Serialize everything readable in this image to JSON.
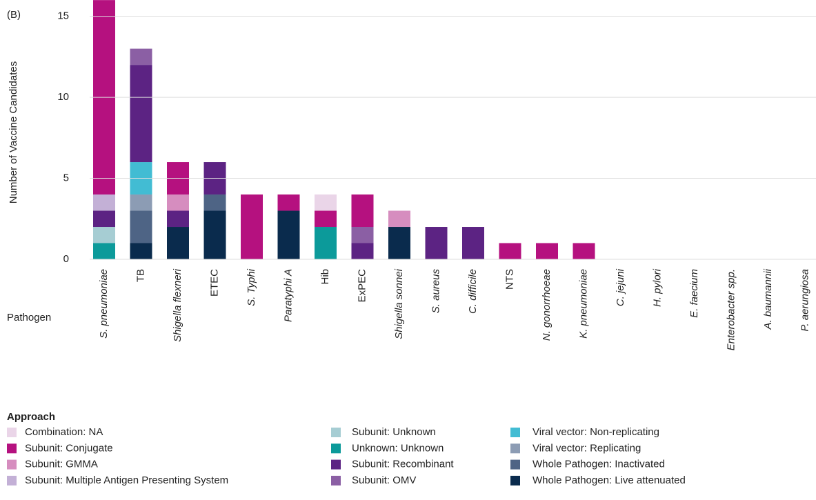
{
  "chart_data": {
    "type": "stacked_bar",
    "panel_label": "(B)",
    "y_label": "Number of Vaccine Candidates",
    "x_label": "Pathogen",
    "legend_title": "Approach",
    "ylim": [
      0,
      15.75
    ],
    "yticks": [
      0,
      5,
      10,
      15
    ],
    "grid": true,
    "categories": [
      "S. pneumoniae",
      "TB",
      "Shigella flexneri",
      "ETEC",
      "S. Typhi",
      "Paratyphi A",
      "Hib",
      "ExPEC",
      "Shigella sonnei",
      "S. aureus",
      "C. difficile",
      "NTS",
      "N. gonorrhoeae",
      "K. pneumoniae",
      "C. jejuni",
      "H. pylori",
      "E. faecium",
      "Enterobacter spp.",
      "A. baumannii",
      "P. aerungiosa"
    ],
    "series": [
      {
        "name": "Combination: NA",
        "color": "#ead5e8",
        "values": [
          0,
          0,
          0,
          0,
          0,
          0,
          1,
          0,
          0,
          0,
          0,
          0,
          0,
          0,
          0,
          0,
          0,
          0,
          0,
          0
        ]
      },
      {
        "name": "Subunit: Conjugate",
        "color": "#b5117f",
        "values": [
          12,
          0,
          2,
          0,
          4,
          1,
          1,
          2,
          0,
          0,
          0,
          1,
          1,
          1,
          0,
          0,
          0,
          0,
          0,
          0
        ]
      },
      {
        "name": "Subunit: GMMA",
        "color": "#d68dbf",
        "values": [
          0,
          0,
          1,
          0,
          0,
          0,
          0,
          0,
          1,
          0,
          0,
          0,
          0,
          0,
          0,
          0,
          0,
          0,
          0,
          0
        ]
      },
      {
        "name": "Subunit: Multiple Antigen Presenting System",
        "color": "#c3b0d6",
        "values": [
          1,
          0,
          0,
          0,
          0,
          0,
          0,
          0,
          0,
          0,
          0,
          0,
          0,
          0,
          0,
          0,
          0,
          0,
          0,
          0
        ]
      },
      {
        "name": "Subunit: Unknown",
        "color": "#a6cdd3",
        "values": [
          1,
          0,
          0,
          0,
          0,
          0,
          0,
          0,
          0,
          0,
          0,
          0,
          0,
          0,
          0,
          0,
          0,
          0,
          0,
          0
        ]
      },
      {
        "name": "Unknown: Unknown",
        "color": "#0c9a9a",
        "values": [
          1,
          0,
          0,
          0,
          0,
          0,
          2,
          0,
          0,
          0,
          0,
          0,
          0,
          0,
          0,
          0,
          0,
          0,
          0,
          0
        ]
      },
      {
        "name": "Subunit: Recombinant",
        "color": "#5c2383",
        "values": [
          1,
          6,
          1,
          2,
          0,
          0,
          0,
          1,
          0,
          2,
          2,
          0,
          0,
          0,
          0,
          0,
          0,
          0,
          0,
          0
        ]
      },
      {
        "name": "Subunit: OMV",
        "color": "#8b5fa4",
        "values": [
          0,
          1,
          0,
          0,
          0,
          0,
          0,
          1,
          0,
          0,
          0,
          0,
          0,
          0,
          0,
          0,
          0,
          0,
          0,
          0
        ]
      },
      {
        "name": "Viral vector: Non-replicating",
        "color": "#42bcd3",
        "values": [
          0,
          2,
          0,
          0,
          0,
          0,
          0,
          0,
          0,
          0,
          0,
          0,
          0,
          0,
          0,
          0,
          0,
          0,
          0,
          0
        ]
      },
      {
        "name": "Viral vector: Replicating",
        "color": "#8c9cb4",
        "values": [
          0,
          1,
          0,
          0,
          0,
          0,
          0,
          0,
          0,
          0,
          0,
          0,
          0,
          0,
          0,
          0,
          0,
          0,
          0,
          0
        ]
      },
      {
        "name": "Whole Pathogen: Inactivated",
        "color": "#4e6485",
        "values": [
          0,
          2,
          0,
          1,
          0,
          0,
          0,
          0,
          0,
          0,
          0,
          0,
          0,
          0,
          0,
          0,
          0,
          0,
          0,
          0
        ]
      },
      {
        "name": "Whole Pathogen: Live attenuated",
        "color": "#0a2b4d",
        "values": [
          0,
          1,
          2,
          3,
          0,
          3,
          0,
          0,
          2,
          0,
          0,
          0,
          0,
          0,
          0,
          0,
          0,
          0,
          0,
          0
        ]
      }
    ]
  }
}
